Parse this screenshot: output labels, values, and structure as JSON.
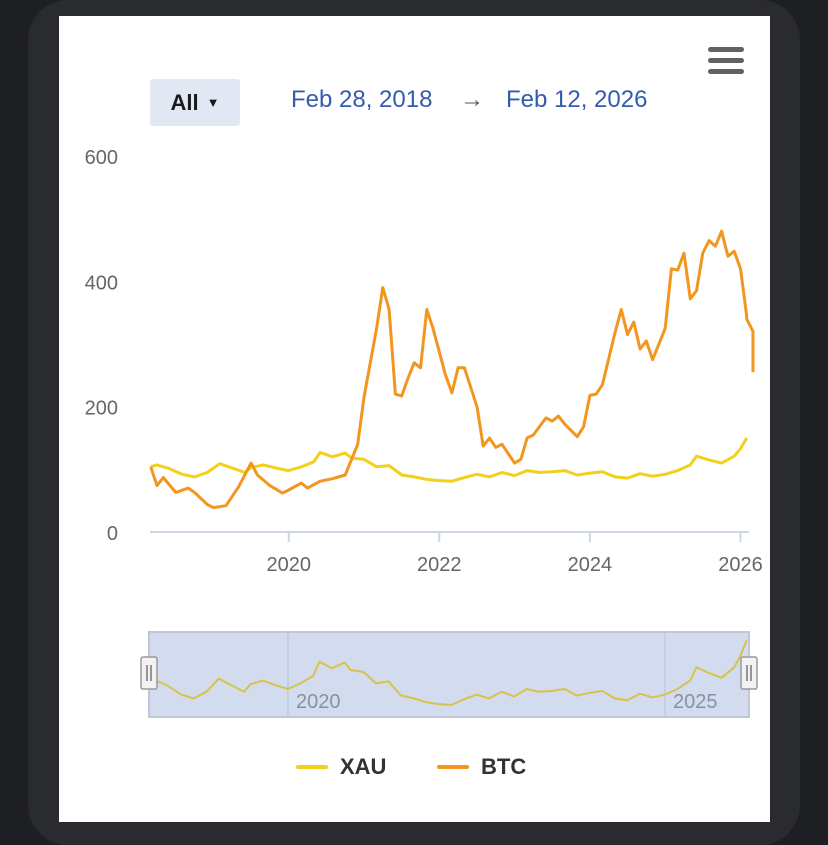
{
  "range_selector": {
    "label": "All",
    "caret": "▼"
  },
  "date_range": {
    "from": "Feb 28, 2018",
    "arrow": "→",
    "to": "Feb 12, 2026"
  },
  "menu": {
    "icon": "hamburger-menu-icon"
  },
  "navigator": {
    "tick_labels": [
      "2020",
      "2025"
    ]
  },
  "chart_data": {
    "type": "line",
    "title": "",
    "xlabel": "",
    "ylabel": "",
    "x_range": [
      "2018-02-28",
      "2026-02-12"
    ],
    "ylim": [
      0,
      600
    ],
    "y_ticks": [
      "0",
      "200",
      "400",
      "600"
    ],
    "x_ticks": [
      "2020",
      "2022",
      "2024",
      "2026"
    ],
    "grid": false,
    "legend_position": "bottom",
    "series": [
      {
        "name": "XAU",
        "color": "#f2d01c",
        "points": [
          [
            "2018-03",
            104
          ],
          [
            "2018-04",
            107
          ],
          [
            "2018-06",
            101
          ],
          [
            "2018-08",
            92
          ],
          [
            "2018-10",
            88
          ],
          [
            "2018-12",
            95
          ],
          [
            "2019-02",
            109
          ],
          [
            "2019-04",
            102
          ],
          [
            "2019-06",
            95
          ],
          [
            "2019-07",
            103
          ],
          [
            "2019-09",
            107
          ],
          [
            "2019-11",
            102
          ],
          [
            "2020-01",
            98
          ],
          [
            "2020-03",
            104
          ],
          [
            "2020-05",
            112
          ],
          [
            "2020-06",
            127
          ],
          [
            "2020-08",
            120
          ],
          [
            "2020-10",
            126
          ],
          [
            "2020-11",
            118
          ],
          [
            "2021-01",
            116
          ],
          [
            "2021-03",
            104
          ],
          [
            "2021-05",
            106
          ],
          [
            "2021-07",
            91
          ],
          [
            "2021-09",
            88
          ],
          [
            "2021-11",
            84
          ],
          [
            "2022-01",
            82
          ],
          [
            "2022-03",
            81
          ],
          [
            "2022-05",
            87
          ],
          [
            "2022-07",
            92
          ],
          [
            "2022-09",
            88
          ],
          [
            "2022-11",
            95
          ],
          [
            "2023-01",
            90
          ],
          [
            "2023-03",
            98
          ],
          [
            "2023-05",
            95
          ],
          [
            "2023-07",
            96
          ],
          [
            "2023-09",
            98
          ],
          [
            "2023-11",
            91
          ],
          [
            "2024-01",
            94
          ],
          [
            "2024-03",
            96
          ],
          [
            "2024-05",
            88
          ],
          [
            "2024-07",
            86
          ],
          [
            "2024-09",
            93
          ],
          [
            "2024-11",
            89
          ],
          [
            "2025-01",
            92
          ],
          [
            "2025-03",
            98
          ],
          [
            "2025-05",
            107
          ],
          [
            "2025-06",
            121
          ],
          [
            "2025-08",
            115
          ],
          [
            "2025-10",
            110
          ],
          [
            "2025-12",
            121
          ],
          [
            "2026-01",
            133
          ],
          [
            "2026-02",
            150
          ]
        ]
      },
      {
        "name": "BTC",
        "color": "#f2961f",
        "points": [
          [
            "2018-03",
            104
          ],
          [
            "2018-04",
            74
          ],
          [
            "2018-05",
            87
          ],
          [
            "2018-07",
            63
          ],
          [
            "2018-09",
            70
          ],
          [
            "2018-10",
            63
          ],
          [
            "2018-12",
            44
          ],
          [
            "2019-01",
            39
          ],
          [
            "2019-03",
            42
          ],
          [
            "2019-05",
            72
          ],
          [
            "2019-07",
            110
          ],
          [
            "2019-08",
            91
          ],
          [
            "2019-10",
            74
          ],
          [
            "2019-12",
            62
          ],
          [
            "2020-01",
            67
          ],
          [
            "2020-03",
            78
          ],
          [
            "2020-04",
            70
          ],
          [
            "2020-06",
            81
          ],
          [
            "2020-08",
            85
          ],
          [
            "2020-10",
            91
          ],
          [
            "2020-12",
            140
          ],
          [
            "2021-01",
            215
          ],
          [
            "2021-03",
            325
          ],
          [
            "2021-04",
            390
          ],
          [
            "2021-05",
            355
          ],
          [
            "2021-06",
            220
          ],
          [
            "2021-07",
            217
          ],
          [
            "2021-08",
            245
          ],
          [
            "2021-09",
            270
          ],
          [
            "2021-10",
            262
          ],
          [
            "2021-11",
            355
          ],
          [
            "2021-12",
            325
          ],
          [
            "2022-02",
            250
          ],
          [
            "2022-03",
            222
          ],
          [
            "2022-04",
            262
          ],
          [
            "2022-05",
            262
          ],
          [
            "2022-07",
            200
          ],
          [
            "2022-08",
            137
          ],
          [
            "2022-09",
            150
          ],
          [
            "2022-10",
            135
          ],
          [
            "2022-11",
            140
          ],
          [
            "2023-01",
            110
          ],
          [
            "2023-02",
            116
          ],
          [
            "2023-03",
            150
          ],
          [
            "2023-04",
            155
          ],
          [
            "2023-06",
            182
          ],
          [
            "2023-07",
            177
          ],
          [
            "2023-08",
            185
          ],
          [
            "2023-09",
            172
          ],
          [
            "2023-11",
            152
          ],
          [
            "2023-12",
            168
          ],
          [
            "2024-01",
            218
          ],
          [
            "2024-02",
            220
          ],
          [
            "2024-03",
            235
          ],
          [
            "2024-05",
            318
          ],
          [
            "2024-06",
            355
          ],
          [
            "2024-07",
            315
          ],
          [
            "2024-08",
            335
          ],
          [
            "2024-09",
            292
          ],
          [
            "2024-10",
            305
          ],
          [
            "2024-11",
            275
          ],
          [
            "2024-12",
            300
          ],
          [
            "2025-01",
            325
          ],
          [
            "2025-02",
            420
          ],
          [
            "2025-03",
            418
          ],
          [
            "2025-04",
            445
          ],
          [
            "2025-05",
            372
          ],
          [
            "2025-06",
            385
          ],
          [
            "2025-07",
            445
          ],
          [
            "2025-08",
            465
          ],
          [
            "2025-09",
            456
          ],
          [
            "2025-10",
            480
          ],
          [
            "2025-11",
            440
          ],
          [
            "2025-12",
            448
          ],
          [
            "2026-01",
            420
          ],
          [
            "2026-02",
            345
          ],
          [
            "2026-02",
            340
          ],
          [
            "2026-03",
            320
          ],
          [
            "2026-03",
            255
          ]
        ]
      }
    ]
  }
}
